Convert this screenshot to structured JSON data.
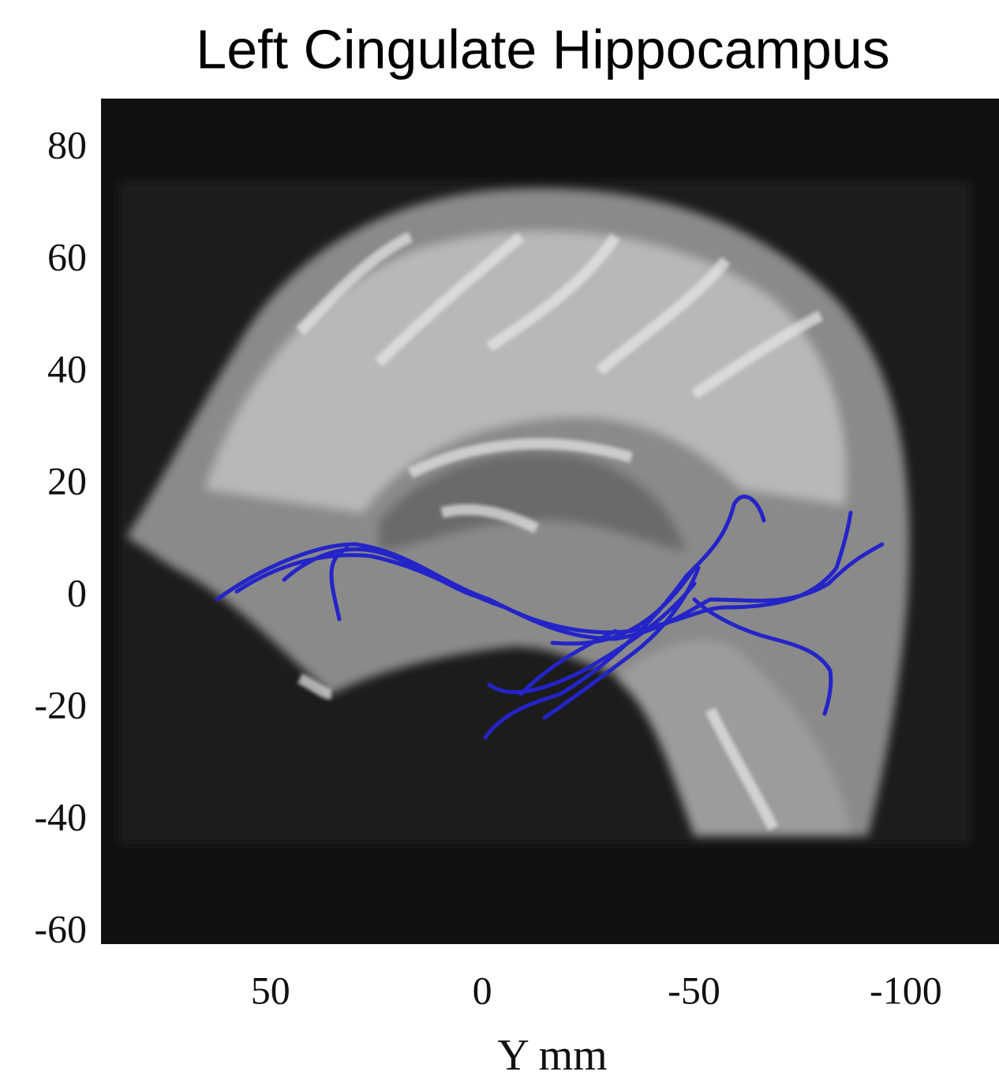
{
  "chart_data": {
    "type": "image",
    "title": "Left Cingulate Hippocampus",
    "x_label": "Y mm",
    "xlim": [
      90,
      -122
    ],
    "xticks": [
      50,
      0,
      -50,
      -100
    ],
    "ylim": [
      -62,
      89
    ],
    "yticks": [
      80,
      60,
      40,
      20,
      0,
      -20,
      -40,
      -60
    ],
    "grid": false
  }
}
